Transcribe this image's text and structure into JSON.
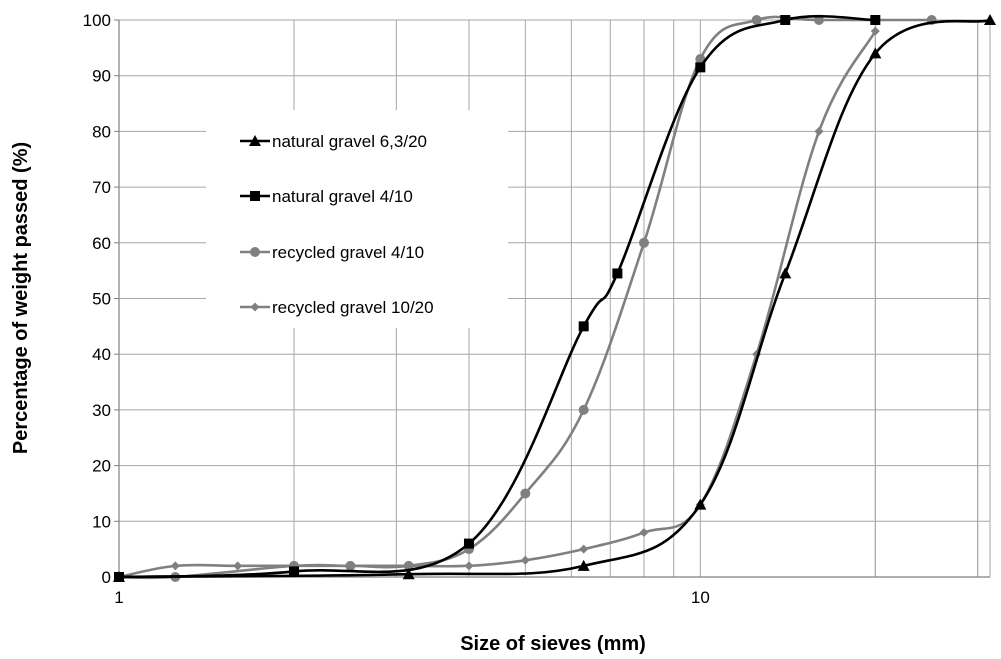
{
  "chart_data": {
    "type": "line",
    "title": "",
    "xlabel": "Size of sieves (mm)",
    "ylabel": "Percentage of weight passed (%)",
    "x_scale": "log",
    "xlim": [
      1,
      31.5
    ],
    "ylim": [
      0,
      100
    ],
    "x_ticks": [
      1,
      10
    ],
    "x_tick_labels": [
      "1",
      "10"
    ],
    "y_ticks": [
      0,
      10,
      20,
      30,
      40,
      50,
      60,
      70,
      80,
      90,
      100
    ],
    "y_tick_labels": [
      "0",
      "10",
      "20",
      "30",
      "40",
      "50",
      "60",
      "70",
      "80",
      "90",
      "100"
    ],
    "grid": true,
    "legend_position": "left-center",
    "series": [
      {
        "name": "natural gravel 6,3/20",
        "color": "#000000",
        "marker": "triangle",
        "x": [
          1,
          3.15,
          6.3,
          10,
          14,
          20,
          31.5
        ],
        "y": [
          0,
          0.5,
          2,
          13,
          54.5,
          94,
          100
        ]
      },
      {
        "name": "natural gravel 4/10",
        "color": "#000000",
        "marker": "square",
        "x": [
          1,
          2,
          4,
          6.3,
          7.2,
          10,
          14,
          20
        ],
        "y": [
          0,
          1,
          6,
          45,
          54.5,
          91.5,
          100,
          100
        ]
      },
      {
        "name": "recycled gravel 4/10",
        "color": "#808080",
        "marker": "circle",
        "x": [
          1,
          1.25,
          2,
          2.5,
          3.15,
          4,
          5,
          6.3,
          8,
          10,
          12.5,
          16,
          25
        ],
        "y": [
          0,
          0,
          2,
          2,
          2,
          5,
          15,
          30,
          60,
          93,
          100,
          100,
          100
        ]
      },
      {
        "name": "recycled gravel 10/20",
        "color": "#808080",
        "marker": "diamond",
        "x": [
          1,
          1.25,
          1.6,
          2,
          2.5,
          3.15,
          4,
          5,
          6.3,
          8,
          10,
          12.5,
          16,
          20
        ],
        "y": [
          0,
          2,
          2,
          2,
          2,
          2,
          2,
          3,
          5,
          8,
          13,
          40,
          80,
          98
        ]
      }
    ]
  }
}
